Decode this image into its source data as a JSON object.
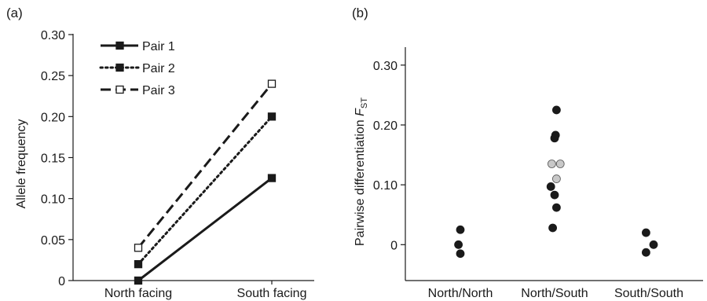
{
  "chart_data": [
    {
      "panel_label": "(a)",
      "type": "line",
      "title": "",
      "xlabel": "",
      "ylabel": "Allele frequency",
      "categories": [
        "North facing",
        "South facing"
      ],
      "ylim": [
        0,
        0.3
      ],
      "yticks": [
        0,
        0.05,
        0.1,
        0.15,
        0.2,
        0.25,
        0.3
      ],
      "ytick_labels": [
        "0",
        "0.05",
        "0.10",
        "0.15",
        "0.20",
        "0.25",
        "0.30"
      ],
      "legend": "top-left",
      "grid": false,
      "series": [
        {
          "name": "Pair 1",
          "values": [
            0,
            0.125
          ],
          "line": "solid",
          "marker": "filled-square"
        },
        {
          "name": "Pair 2",
          "values": [
            0.02,
            0.2
          ],
          "line": "dotted",
          "marker": "filled-square"
        },
        {
          "name": "Pair 3",
          "values": [
            0.04,
            0.24
          ],
          "line": "dashed",
          "marker": "open-square"
        }
      ]
    },
    {
      "panel_label": "(b)",
      "type": "scatter",
      "title": "",
      "xlabel": "",
      "ylabel_main": "Pairwise differentiation ",
      "ylabel_symbol": "F",
      "ylabel_subscript": "ST",
      "categories": [
        "North/North",
        "North/South",
        "South/South"
      ],
      "ylim": [
        -0.06,
        0.33
      ],
      "yticks": [
        0,
        0.1,
        0.2,
        0.3
      ],
      "ytick_labels": [
        "0",
        "0.10",
        "0.20",
        "0.30"
      ],
      "grid": false,
      "colors": {
        "dark": "#1a1a1a",
        "light": "#c8c8c8"
      },
      "points": [
        {
          "category": 0,
          "offset": 0,
          "y": 0.025,
          "color": "dark"
        },
        {
          "category": 0,
          "offset": -0.02,
          "y": 0.0,
          "color": "dark"
        },
        {
          "category": 0,
          "offset": 0,
          "y": -0.015,
          "color": "dark"
        },
        {
          "category": 1,
          "offset": 0.02,
          "y": 0.225,
          "color": "dark"
        },
        {
          "category": 1,
          "offset": 0.01,
          "y": 0.183,
          "color": "dark"
        },
        {
          "category": 1,
          "offset": 0.0,
          "y": 0.178,
          "color": "dark"
        },
        {
          "category": 1,
          "offset": -0.03,
          "y": 0.135,
          "color": "light"
        },
        {
          "category": 1,
          "offset": 0.06,
          "y": 0.135,
          "color": "light"
        },
        {
          "category": 1,
          "offset": 0.02,
          "y": 0.11,
          "color": "light"
        },
        {
          "category": 1,
          "offset": -0.04,
          "y": 0.097,
          "color": "dark"
        },
        {
          "category": 1,
          "offset": 0.0,
          "y": 0.083,
          "color": "dark"
        },
        {
          "category": 1,
          "offset": 0.02,
          "y": 0.062,
          "color": "dark"
        },
        {
          "category": 1,
          "offset": -0.02,
          "y": 0.028,
          "color": "dark"
        },
        {
          "category": 2,
          "offset": -0.03,
          "y": 0.02,
          "color": "dark"
        },
        {
          "category": 2,
          "offset": 0.05,
          "y": 0.0,
          "color": "dark"
        },
        {
          "category": 2,
          "offset": -0.03,
          "y": -0.013,
          "color": "dark"
        }
      ]
    }
  ]
}
